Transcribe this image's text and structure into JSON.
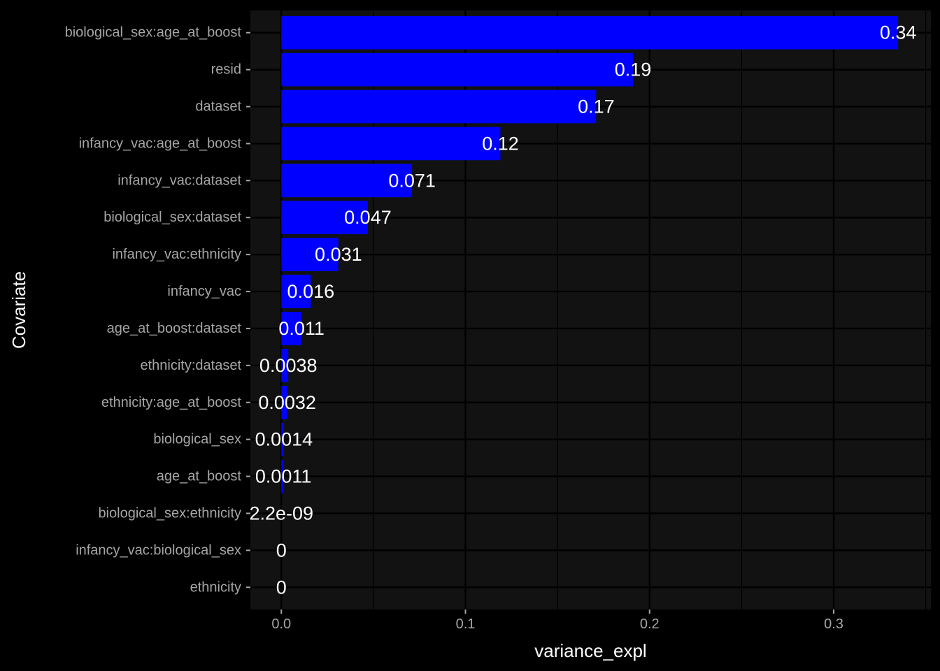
{
  "chart_data": {
    "type": "bar",
    "orientation": "horizontal",
    "title": "",
    "xlabel": "variance_expl",
    "ylabel": "Covariate",
    "xlim": [
      -0.0168,
      0.3528
    ],
    "xticks": [
      0.0,
      0.1,
      0.2,
      0.3
    ],
    "xtick_labels": [
      "0.0",
      "0.1",
      "0.2",
      "0.3"
    ],
    "bar_color": "#0000ff",
    "panel_color": "#121212",
    "grid": true,
    "legend": "none",
    "categories": [
      "biological_sex:age_at_boost",
      "resid",
      "dataset",
      "infancy_vac:age_at_boost",
      "infancy_vac:dataset",
      "biological_sex:dataset",
      "infancy_vac:ethnicity",
      "infancy_vac",
      "age_at_boost:dataset",
      "ethnicity:dataset",
      "ethnicity:age_at_boost",
      "biological_sex",
      "age_at_boost",
      "biological_sex:ethnicity",
      "infancy_vac:biological_sex",
      "ethnicity"
    ],
    "values": [
      0.335,
      0.191,
      0.171,
      0.119,
      0.071,
      0.047,
      0.031,
      0.016,
      0.011,
      0.0038,
      0.0032,
      0.0014,
      0.0011,
      2.2e-09,
      0,
      0
    ],
    "value_labels": [
      "0.34",
      "0.19",
      "0.17",
      "0.12",
      "0.071",
      "0.047",
      "0.031",
      "0.016",
      "0.011",
      "0.0038",
      "0.0032",
      "0.0014",
      "0.0011",
      "2.2e-09",
      "0",
      "0"
    ]
  }
}
